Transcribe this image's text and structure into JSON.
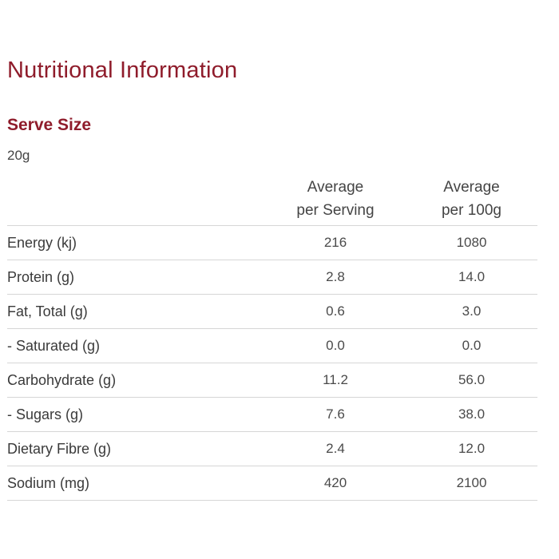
{
  "title": "Nutritional Information",
  "serve_size": {
    "heading": "Serve Size",
    "value": "20g"
  },
  "table": {
    "headers": [
      "",
      [
        "Average",
        "per Serving"
      ],
      [
        "Average",
        "per 100g"
      ]
    ],
    "rows": [
      {
        "name": "Energy (kj)",
        "per_serving": "216",
        "per_100g": "1080"
      },
      {
        "name": "Protein (g)",
        "per_serving": "2.8",
        "per_100g": "14.0"
      },
      {
        "name": "Fat, Total (g)",
        "per_serving": "0.6",
        "per_100g": "3.0"
      },
      {
        "name": "- Saturated (g)",
        "per_serving": "0.0",
        "per_100g": "0.0"
      },
      {
        "name": "Carbohydrate (g)",
        "per_serving": "11.2",
        "per_100g": "56.0"
      },
      {
        "name": "- Sugars (g)",
        "per_serving": "7.6",
        "per_100g": "38.0"
      },
      {
        "name": "Dietary Fibre (g)",
        "per_serving": "2.4",
        "per_100g": "12.0"
      },
      {
        "name": "Sodium (mg)",
        "per_serving": "420",
        "per_100g": "2100"
      }
    ]
  },
  "colors": {
    "heading": "#8f1c2b",
    "text": "#444444",
    "divider": "#d6d6d6"
  }
}
